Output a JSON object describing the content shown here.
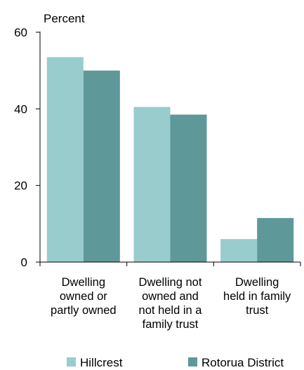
{
  "chart_data": {
    "type": "bar",
    "ylabel": "Percent",
    "ylim": [
      0,
      60
    ],
    "yticks": [
      0,
      20,
      40,
      60
    ],
    "categories": [
      [
        "Dwelling",
        "owned or",
        "partly owned"
      ],
      [
        "Dwelling not",
        "owned and",
        "not held in a",
        "family trust"
      ],
      [
        "Dwelling",
        "held in family",
        "trust"
      ]
    ],
    "series": [
      {
        "name": "Hillcrest",
        "color": "#99cccc",
        "values": [
          53.5,
          40.5,
          6
        ]
      },
      {
        "name": "Rotorua District",
        "color": "#5f9898",
        "values": [
          50,
          38.5,
          11.5
        ]
      }
    ],
    "legend_position": "bottom",
    "grid": false
  }
}
